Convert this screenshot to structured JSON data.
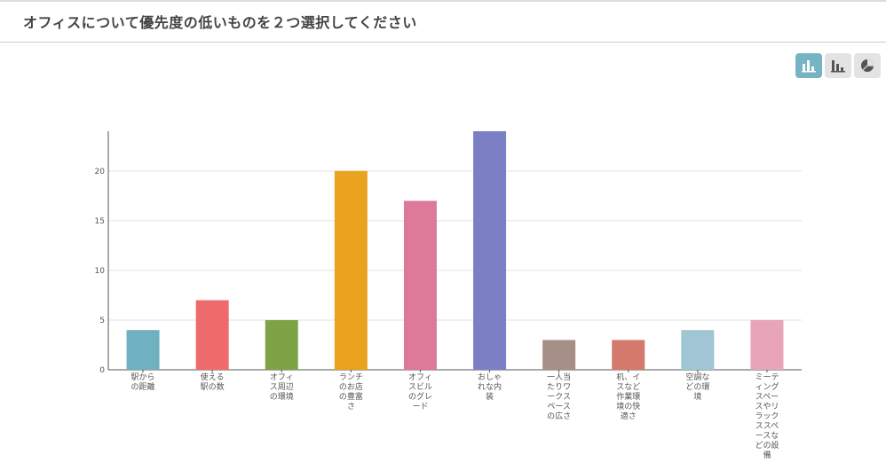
{
  "title": "オフィスについて優先度の低いものを２つ選択してください",
  "toolbar": {
    "buttons": [
      {
        "icon": "bar-chart-icon",
        "active": true
      },
      {
        "icon": "sorted-bar-chart-icon",
        "active": false
      },
      {
        "icon": "pie-chart-icon",
        "active": false
      }
    ]
  },
  "colors": {
    "accent": "#76b4c4",
    "button_bg": "#e3e3e3",
    "axis": "#555555",
    "grid": "#e2e2e2"
  },
  "chart_data": {
    "type": "bar",
    "categories": [
      [
        "駅から",
        "の距離"
      ],
      [
        "使える",
        "駅の数"
      ],
      [
        "オフィ",
        "ス周辺",
        "の環境"
      ],
      [
        "ランチ",
        "のお店",
        "の豊富",
        "さ"
      ],
      [
        "オフィ",
        "スビル",
        "のグレ",
        "ード"
      ],
      [
        "おしゃ",
        "れな内",
        "装"
      ],
      [
        "一人当",
        "たりワ",
        "ークス",
        "ペース",
        "の広さ"
      ],
      [
        "机、イ",
        "スなど",
        "作業環",
        "境の快",
        "適さ"
      ],
      [
        "空調な",
        "どの環",
        "境"
      ],
      [
        "ミーテ",
        "ィング",
        "スペー",
        "スやリ",
        "ラック",
        "ススペ",
        "ースな",
        "どの設",
        "備"
      ]
    ],
    "values": [
      4,
      7,
      5,
      20,
      17,
      24,
      3,
      3,
      4,
      5
    ],
    "bar_colors": [
      "#6fb0c1",
      "#ef6a6a",
      "#7ea346",
      "#e9a31f",
      "#dd7a99",
      "#7a80c3",
      "#a68f86",
      "#d47a6c",
      "#9fc6d2",
      "#e8a4b9"
    ],
    "yticks": [
      0,
      5,
      10,
      15,
      20
    ],
    "ylim": [
      0,
      24
    ],
    "grid": true,
    "legend": "none"
  }
}
